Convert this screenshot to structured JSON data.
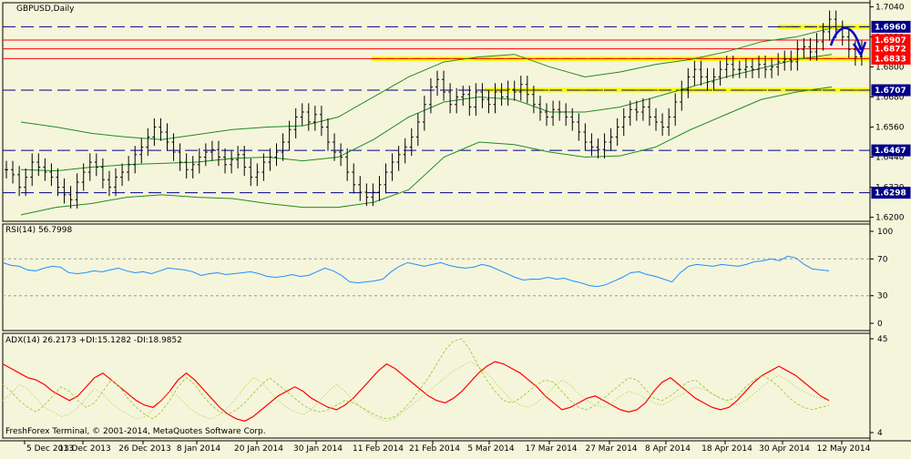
{
  "main_title": "GBPUSD,Daily",
  "rsi_title": "RSI(14) 56.7998",
  "adx_title": "ADX(14) 26.2173 +DI:15.1282 -DI:18.9852",
  "copyright": "FreshForex Terminal, © 2001-2014, MetaQuotes Software Corp.",
  "colors": {
    "background": "#f5f5dc",
    "candles": "#000000",
    "bollinger": "#228b22",
    "support_resistance": "#00008b",
    "channel_band": "#ffff00",
    "red_lines": "#ff0000",
    "rsi": "#1e90ff",
    "adx": "#ff0000",
    "di": "#9acd32",
    "arrow": "#0000cd"
  },
  "chart_data": [
    {
      "type": "candlestick",
      "title": "GBPUSD,Daily",
      "symbol": "GBPUSD",
      "timeframe": "Daily",
      "x_tick_labels": [
        "5 Dec 2013",
        "13 Dec 2013",
        "26 Dec 2013",
        "8 Jan 2014",
        "20 Jan 2014",
        "30 Jan 2014",
        "11 Feb 2014",
        "21 Feb 2014",
        "5 Mar 2014",
        "17 Mar 2014",
        "27 Mar 2014",
        "8 Apr 2014",
        "18 Apr 2014",
        "30 Apr 2014",
        "12 May 2014"
      ],
      "y_ticks": [
        1.704,
        1.692,
        1.68,
        1.668,
        1.656,
        1.644,
        1.632,
        1.62
      ],
      "ylim": [
        1.6184,
        1.7056
      ],
      "horizontal_levels": [
        {
          "value": 1.696,
          "label": "1.6960",
          "style": "dashed",
          "color": "#00008b"
        },
        {
          "value": 1.6907,
          "label": "1.6907",
          "style": "solid",
          "color": "#ff0000"
        },
        {
          "value": 1.6872,
          "label": "1.6872",
          "style": "solid",
          "color": "#ff0000"
        },
        {
          "value": 1.6833,
          "label": "1.6833",
          "style": "solid",
          "color": "#ff0000"
        },
        {
          "value": 1.6707,
          "label": "1.6707",
          "style": "dashed",
          "color": "#00008b"
        },
        {
          "value": 1.6467,
          "label": "1.6467",
          "style": "dashed",
          "color": "#00008b"
        },
        {
          "value": 1.6298,
          "label": "1.6298",
          "style": "dashed",
          "color": "#00008b"
        }
      ],
      "closes": [
        1.639,
        1.637,
        1.632,
        1.636,
        1.642,
        1.64,
        1.638,
        1.636,
        1.632,
        1.629,
        1.627,
        1.634,
        1.638,
        1.642,
        1.64,
        1.635,
        1.632,
        1.636,
        1.638,
        1.641,
        1.645,
        1.648,
        1.652,
        1.656,
        1.654,
        1.65,
        1.646,
        1.642,
        1.639,
        1.641,
        1.644,
        1.646,
        1.647,
        1.644,
        1.641,
        1.643,
        1.645,
        1.64,
        1.636,
        1.638,
        1.642,
        1.644,
        1.646,
        1.65,
        1.655,
        1.66,
        1.662,
        1.658,
        1.661,
        1.656,
        1.65,
        1.646,
        1.644,
        1.638,
        1.633,
        1.63,
        1.628,
        1.63,
        1.633,
        1.638,
        1.642,
        1.645,
        1.648,
        1.652,
        1.658,
        1.665,
        1.672,
        1.675,
        1.67,
        1.665,
        1.668,
        1.669,
        1.664,
        1.67,
        1.667,
        1.665,
        1.67,
        1.668,
        1.671,
        1.67,
        1.673,
        1.669,
        1.665,
        1.662,
        1.66,
        1.663,
        1.662,
        1.66,
        1.658,
        1.654,
        1.65,
        1.648,
        1.647,
        1.65,
        1.652,
        1.656,
        1.66,
        1.663,
        1.662,
        1.664,
        1.66,
        1.658,
        1.656,
        1.66,
        1.666,
        1.671,
        1.676,
        1.679,
        1.676,
        1.674,
        1.676,
        1.679,
        1.681,
        1.679,
        1.679,
        1.68,
        1.679,
        1.681,
        1.679,
        1.68,
        1.682,
        1.683,
        1.682,
        1.687,
        1.688,
        1.686,
        1.69,
        1.694,
        1.699,
        1.695,
        1.692,
        1.687,
        1.684,
        1.687
      ],
      "bollinger": {
        "upper": [
          1.658,
          1.656,
          1.6535,
          1.652,
          1.651,
          1.653,
          1.655,
          1.656,
          1.6565,
          1.66,
          1.668,
          1.676,
          1.682,
          1.684,
          1.685,
          1.68,
          1.676,
          1.678,
          1.681,
          1.683,
          1.686,
          1.69,
          1.692,
          1.6955
        ],
        "middle": [
          1.639,
          1.6385,
          1.64,
          1.641,
          1.6415,
          1.642,
          1.6435,
          1.644,
          1.6425,
          1.644,
          1.651,
          1.66,
          1.666,
          1.668,
          1.667,
          1.662,
          1.662,
          1.664,
          1.668,
          1.672,
          1.676,
          1.6795,
          1.683,
          1.685
        ],
        "lower": [
          1.621,
          1.624,
          1.6255,
          1.628,
          1.629,
          1.628,
          1.6275,
          1.6255,
          1.624,
          1.624,
          1.626,
          1.631,
          1.644,
          1.65,
          1.649,
          1.646,
          1.644,
          1.6445,
          1.648,
          1.655,
          1.661,
          1.667,
          1.67,
          1.672
        ]
      },
      "channel_bands": [
        {
          "start": "11 Feb 2014",
          "end": "12 May 2014",
          "value": 1.6833
        },
        {
          "start": "5 Mar 2014",
          "end": "12 May 2014",
          "value": 1.6707
        },
        {
          "start": "30 Apr 2014",
          "end": "12 May 2014",
          "value": 1.696
        }
      ]
    },
    {
      "type": "line",
      "title": "RSI(14) 56.7998",
      "y_ticks": [
        100,
        70,
        30,
        0
      ],
      "ylim": [
        0,
        100
      ],
      "levels": [
        70,
        30
      ],
      "values": [
        66,
        63,
        62,
        58,
        57,
        60,
        62,
        61,
        55,
        54,
        55,
        57,
        56,
        58,
        60,
        57,
        55,
        56,
        54,
        57,
        60,
        59,
        58,
        56,
        52,
        54,
        55,
        53,
        54,
        55,
        56,
        54,
        51,
        50,
        51,
        53,
        51,
        52,
        56,
        60,
        57,
        52,
        45,
        44,
        45,
        46,
        48,
        56,
        62,
        66,
        64,
        62,
        64,
        66,
        63,
        61,
        60,
        61,
        64,
        62,
        58,
        54,
        50,
        47,
        48,
        48,
        50,
        48,
        49,
        46,
        44,
        41,
        40,
        42,
        46,
        50,
        55,
        56,
        53,
        51,
        48,
        45,
        55,
        62,
        64,
        63,
        62,
        64,
        63,
        62,
        64,
        67,
        68,
        70,
        68,
        73,
        71,
        64,
        59,
        58,
        57
      ]
    },
    {
      "type": "line",
      "title": "ADX(14) 26.2173 +DI:15.1282 -DI:18.9852",
      "y_ticks": [
        45,
        4
      ],
      "ylim": [
        4,
        45
      ],
      "series": [
        {
          "name": "ADX(14)",
          "values": [
            34,
            32,
            30,
            28,
            27,
            25,
            22,
            20,
            18,
            20,
            24,
            28,
            30,
            27,
            24,
            21,
            18,
            16,
            15,
            18,
            22,
            27,
            30,
            27,
            23,
            19,
            15,
            12,
            10,
            9,
            11,
            14,
            17,
            20,
            22,
            24,
            22,
            19,
            17,
            15,
            14,
            16,
            19,
            23,
            27,
            31,
            34,
            32,
            29,
            26,
            23,
            20,
            18,
            17,
            19,
            22,
            26,
            30,
            33,
            35,
            34,
            32,
            30,
            27,
            24,
            20,
            17,
            14,
            15,
            17,
            19,
            20,
            18,
            16,
            14,
            13,
            14,
            17,
            22,
            26,
            28,
            25,
            22,
            19,
            17,
            15,
            14,
            15,
            18,
            22,
            26,
            29,
            31,
            33,
            31,
            29,
            26,
            23,
            20,
            18
          ]
        },
        {
          "name": "+DI",
          "values": [
            25,
            22,
            18,
            15,
            13,
            16,
            20,
            24,
            22,
            18,
            15,
            17,
            22,
            27,
            24,
            19,
            15,
            12,
            10,
            13,
            18,
            24,
            28,
            25,
            20,
            16,
            13,
            12,
            14,
            17,
            21,
            25,
            28,
            25,
            22,
            19,
            16,
            14,
            13,
            14,
            16,
            18,
            17,
            15,
            13,
            11,
            10,
            11,
            14,
            18,
            23,
            28,
            34,
            40,
            44,
            45,
            40,
            33,
            27,
            22,
            18,
            17,
            19,
            22,
            25,
            27,
            26,
            22,
            18,
            15,
            14,
            16,
            19,
            22,
            25,
            28,
            27,
            23,
            19,
            18,
            20,
            23,
            26,
            27,
            24,
            21,
            19,
            18,
            20,
            24,
            27,
            29,
            27,
            24,
            20,
            17,
            15,
            14,
            15,
            16
          ]
        },
        {
          "name": "-DI",
          "values": [
            18,
            21,
            25,
            23,
            19,
            15,
            13,
            11,
            12,
            15,
            19,
            23,
            21,
            17,
            14,
            12,
            10,
            11,
            14,
            18,
            22,
            20,
            16,
            13,
            11,
            10,
            12,
            15,
            19,
            24,
            28,
            26,
            22,
            18,
            15,
            13,
            12,
            14,
            18,
            22,
            25,
            22,
            18,
            15,
            12,
            10,
            9,
            10,
            13,
            16,
            19,
            22,
            25,
            28,
            31,
            33,
            35,
            33,
            30,
            26,
            22,
            18,
            16,
            15,
            17,
            20,
            24,
            27,
            25,
            21,
            18,
            16,
            15,
            17,
            20,
            22,
            21,
            19,
            17,
            16,
            18,
            20,
            22,
            24,
            23,
            21,
            19,
            17,
            16,
            18,
            21,
            24,
            27,
            29,
            27,
            24,
            22,
            20,
            19,
            18
          ]
        }
      ]
    }
  ]
}
